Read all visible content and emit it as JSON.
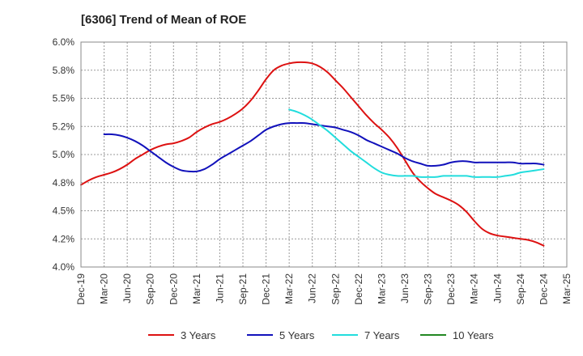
{
  "chart_data": {
    "type": "line",
    "title": "[6306]  Trend of Mean of ROE",
    "xlabel": "",
    "ylabel": "",
    "x_ticks": [
      "Dec-19",
      "Mar-20",
      "Jun-20",
      "Sep-20",
      "Dec-20",
      "Mar-21",
      "Jun-21",
      "Sep-21",
      "Dec-21",
      "Mar-22",
      "Jun-22",
      "Sep-22",
      "Dec-22",
      "Mar-23",
      "Jun-23",
      "Sep-23",
      "Dec-23",
      "Mar-24",
      "Jun-24",
      "Sep-24",
      "Dec-24",
      "Mar-25"
    ],
    "y_ticks": [
      "4.0%",
      "4.2%",
      "4.5%",
      "4.8%",
      "5.0%",
      "5.2%",
      "5.5%",
      "5.8%",
      "6.0%"
    ],
    "y_tick_values": [
      4.0,
      4.25,
      4.5,
      4.75,
      5.0,
      5.25,
      5.5,
      5.75,
      6.0
    ],
    "ylim": [
      4.0,
      6.0
    ],
    "grid": true,
    "legend_position": "bottom",
    "series": [
      {
        "name": "3 Years",
        "color": "#dd1111",
        "points": [
          [
            "Dec-19",
            4.73
          ],
          [
            "Jan-20",
            4.77
          ],
          [
            "Feb-20",
            4.8
          ],
          [
            "Mar-20",
            4.82
          ],
          [
            "Apr-20",
            4.84
          ],
          [
            "May-20",
            4.87
          ],
          [
            "Jun-20",
            4.91
          ],
          [
            "Jul-20",
            4.96
          ],
          [
            "Aug-20",
            5.0
          ],
          [
            "Sep-20",
            5.04
          ],
          [
            "Oct-20",
            5.07
          ],
          [
            "Nov-20",
            5.09
          ],
          [
            "Dec-20",
            5.1
          ],
          [
            "Jan-21",
            5.12
          ],
          [
            "Feb-21",
            5.15
          ],
          [
            "Mar-21",
            5.2
          ],
          [
            "Apr-21",
            5.24
          ],
          [
            "May-21",
            5.27
          ],
          [
            "Jun-21",
            5.29
          ],
          [
            "Jul-21",
            5.32
          ],
          [
            "Aug-21",
            5.36
          ],
          [
            "Sep-21",
            5.41
          ],
          [
            "Oct-21",
            5.48
          ],
          [
            "Nov-21",
            5.57
          ],
          [
            "Dec-21",
            5.67
          ],
          [
            "Jan-22",
            5.75
          ],
          [
            "Feb-22",
            5.79
          ],
          [
            "Mar-22",
            5.81
          ],
          [
            "Apr-22",
            5.82
          ],
          [
            "May-22",
            5.82
          ],
          [
            "Jun-22",
            5.81
          ],
          [
            "Jul-22",
            5.78
          ],
          [
            "Aug-22",
            5.73
          ],
          [
            "Sep-22",
            5.66
          ],
          [
            "Oct-22",
            5.59
          ],
          [
            "Nov-22",
            5.51
          ],
          [
            "Dec-22",
            5.43
          ],
          [
            "Jan-23",
            5.35
          ],
          [
            "Feb-23",
            5.28
          ],
          [
            "Mar-23",
            5.22
          ],
          [
            "Apr-23",
            5.15
          ],
          [
            "May-23",
            5.06
          ],
          [
            "Jun-23",
            4.95
          ],
          [
            "Jul-23",
            4.84
          ],
          [
            "Aug-23",
            4.76
          ],
          [
            "Sep-23",
            4.7
          ],
          [
            "Oct-23",
            4.65
          ],
          [
            "Nov-23",
            4.62
          ],
          [
            "Dec-23",
            4.59
          ],
          [
            "Jan-24",
            4.55
          ],
          [
            "Feb-24",
            4.49
          ],
          [
            "Mar-24",
            4.41
          ],
          [
            "Apr-24",
            4.34
          ],
          [
            "May-24",
            4.3
          ],
          [
            "Jun-24",
            4.28
          ],
          [
            "Jul-24",
            4.27
          ],
          [
            "Aug-24",
            4.26
          ],
          [
            "Sep-24",
            4.25
          ],
          [
            "Oct-24",
            4.24
          ],
          [
            "Nov-24",
            4.22
          ],
          [
            "Dec-24",
            4.19
          ]
        ]
      },
      {
        "name": "5 Years",
        "color": "#1111bb",
        "points": [
          [
            "Mar-20",
            5.18
          ],
          [
            "Apr-20",
            5.18
          ],
          [
            "May-20",
            5.17
          ],
          [
            "Jun-20",
            5.15
          ],
          [
            "Jul-20",
            5.12
          ],
          [
            "Aug-20",
            5.08
          ],
          [
            "Sep-20",
            5.03
          ],
          [
            "Oct-20",
            4.98
          ],
          [
            "Nov-20",
            4.93
          ],
          [
            "Dec-20",
            4.89
          ],
          [
            "Jan-21",
            4.86
          ],
          [
            "Feb-21",
            4.85
          ],
          [
            "Mar-21",
            4.85
          ],
          [
            "Apr-21",
            4.87
          ],
          [
            "May-21",
            4.91
          ],
          [
            "Jun-21",
            4.96
          ],
          [
            "Jul-21",
            5.0
          ],
          [
            "Aug-21",
            5.04
          ],
          [
            "Sep-21",
            5.08
          ],
          [
            "Oct-21",
            5.12
          ],
          [
            "Nov-21",
            5.17
          ],
          [
            "Dec-21",
            5.22
          ],
          [
            "Jan-22",
            5.25
          ],
          [
            "Feb-22",
            5.27
          ],
          [
            "Mar-22",
            5.28
          ],
          [
            "Apr-22",
            5.28
          ],
          [
            "May-22",
            5.28
          ],
          [
            "Jun-22",
            5.27
          ],
          [
            "Jul-22",
            5.26
          ],
          [
            "Aug-22",
            5.25
          ],
          [
            "Sep-22",
            5.24
          ],
          [
            "Oct-22",
            5.22
          ],
          [
            "Nov-22",
            5.2
          ],
          [
            "Dec-22",
            5.17
          ],
          [
            "Jan-23",
            5.13
          ],
          [
            "Feb-23",
            5.1
          ],
          [
            "Mar-23",
            5.07
          ],
          [
            "Apr-23",
            5.04
          ],
          [
            "May-23",
            5.01
          ],
          [
            "Jun-23",
            4.97
          ],
          [
            "Jul-23",
            4.94
          ],
          [
            "Aug-23",
            4.92
          ],
          [
            "Sep-23",
            4.9
          ],
          [
            "Oct-23",
            4.9
          ],
          [
            "Nov-23",
            4.91
          ],
          [
            "Dec-23",
            4.93
          ],
          [
            "Jan-24",
            4.94
          ],
          [
            "Feb-24",
            4.94
          ],
          [
            "Mar-24",
            4.93
          ],
          [
            "Apr-24",
            4.93
          ],
          [
            "May-24",
            4.93
          ],
          [
            "Jun-24",
            4.93
          ],
          [
            "Jul-24",
            4.93
          ],
          [
            "Aug-24",
            4.93
          ],
          [
            "Sep-24",
            4.92
          ],
          [
            "Oct-24",
            4.92
          ],
          [
            "Nov-24",
            4.92
          ],
          [
            "Dec-24",
            4.91
          ]
        ]
      },
      {
        "name": "7 Years",
        "color": "#22dddd",
        "points": [
          [
            "Mar-22",
            5.4
          ],
          [
            "Apr-22",
            5.38
          ],
          [
            "May-22",
            5.35
          ],
          [
            "Jun-22",
            5.31
          ],
          [
            "Jul-22",
            5.26
          ],
          [
            "Aug-22",
            5.21
          ],
          [
            "Sep-22",
            5.15
          ],
          [
            "Oct-22",
            5.09
          ],
          [
            "Nov-22",
            5.03
          ],
          [
            "Dec-22",
            4.98
          ],
          [
            "Jan-23",
            4.93
          ],
          [
            "Feb-23",
            4.88
          ],
          [
            "Mar-23",
            4.84
          ],
          [
            "Apr-23",
            4.82
          ],
          [
            "May-23",
            4.81
          ],
          [
            "Jun-23",
            4.81
          ],
          [
            "Jul-23",
            4.81
          ],
          [
            "Aug-23",
            4.8
          ],
          [
            "Sep-23",
            4.8
          ],
          [
            "Oct-23",
            4.8
          ],
          [
            "Nov-23",
            4.81
          ],
          [
            "Dec-23",
            4.81
          ],
          [
            "Jan-24",
            4.81
          ],
          [
            "Feb-24",
            4.81
          ],
          [
            "Mar-24",
            4.8
          ],
          [
            "Apr-24",
            4.8
          ],
          [
            "May-24",
            4.8
          ],
          [
            "Jun-24",
            4.8
          ],
          [
            "Jul-24",
            4.81
          ],
          [
            "Aug-24",
            4.82
          ],
          [
            "Sep-24",
            4.84
          ],
          [
            "Oct-24",
            4.85
          ],
          [
            "Nov-24",
            4.86
          ],
          [
            "Dec-24",
            4.87
          ]
        ]
      },
      {
        "name": "10 Years",
        "color": "#228822",
        "points": []
      }
    ]
  }
}
